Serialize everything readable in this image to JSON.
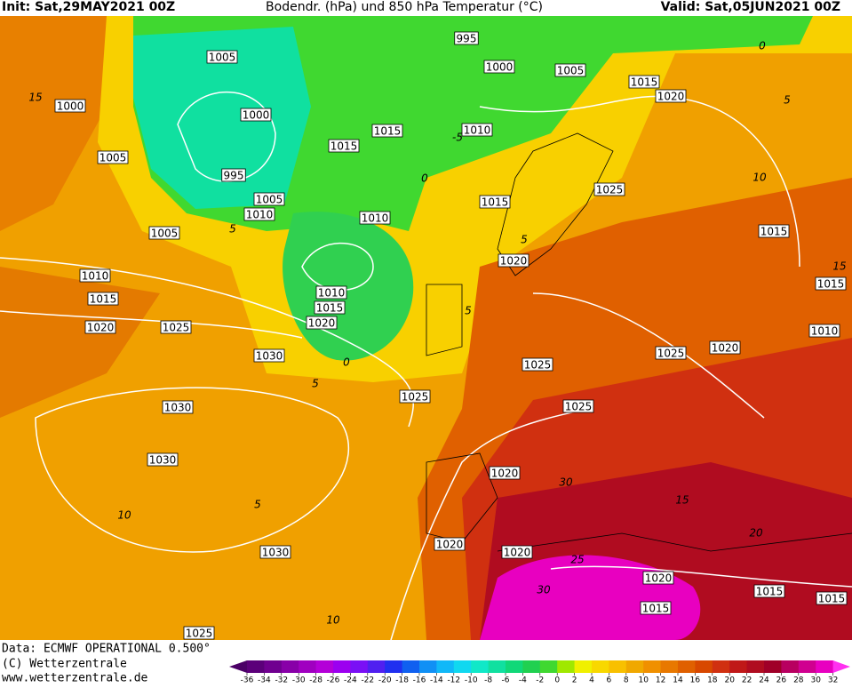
{
  "header": {
    "init": "Init: Sat,29MAY2021 00Z",
    "title": "Bodendr. (hPa) und 850 hPa Temperatur (°C)",
    "valid": "Valid: Sat,05JUN2021 00Z"
  },
  "isobar_labels": [
    1005,
    995,
    1000,
    1005,
    1015,
    1020,
    1000,
    1000,
    1015,
    1015,
    1010,
    1005,
    995,
    1025,
    1005,
    1010,
    1010,
    1015,
    1005,
    1015,
    1010,
    1020,
    1015,
    1010,
    1015,
    1015,
    1020,
    1020,
    1025,
    1010,
    1025,
    1020,
    1030,
    1025,
    1025,
    1030,
    1025,
    1030,
    1020,
    1020,
    1020,
    1030,
    1020,
    1015,
    1015,
    1015,
    1025
  ],
  "isotherm_labels": [
    15,
    0,
    5,
    10,
    5,
    5,
    0,
    5,
    5,
    10,
    15,
    30,
    15,
    20,
    25,
    30,
    10,
    5,
    -5,
    0
  ],
  "footer": {
    "data": "Data: ECMWF OPERATIONAL 0.500°",
    "copyright": "(C) Wetterzentrale",
    "url": "www.wetterzentrale.de"
  },
  "colorbar": {
    "labels": [
      -36,
      -34,
      -32,
      -30,
      -28,
      -26,
      -24,
      -22,
      -20,
      -18,
      -16,
      -14,
      -12,
      -10,
      -8,
      -6,
      -4,
      -2,
      0,
      2,
      4,
      6,
      8,
      10,
      12,
      14,
      16,
      18,
      20,
      22,
      24,
      26,
      28,
      30,
      32
    ],
    "colors": [
      "#4b0066",
      "#5c007a",
      "#700090",
      "#8800a8",
      "#a000c0",
      "#b400d8",
      "#9c00f0",
      "#7a10f5",
      "#5020f0",
      "#2030f0",
      "#1060f0",
      "#1090f5",
      "#10b8f8",
      "#10d8f0",
      "#10e8c8",
      "#10e0a0",
      "#10d878",
      "#20d050",
      "#40d830",
      "#a0e800",
      "#f0f000",
      "#f8d800",
      "#f8c000",
      "#f0a800",
      "#f09000",
      "#e87800",
      "#e06000",
      "#d84800",
      "#d03010",
      "#c01818",
      "#b00c20",
      "#a00028",
      "#b80060",
      "#d00090",
      "#e800c0",
      "#ff30f0"
    ]
  }
}
